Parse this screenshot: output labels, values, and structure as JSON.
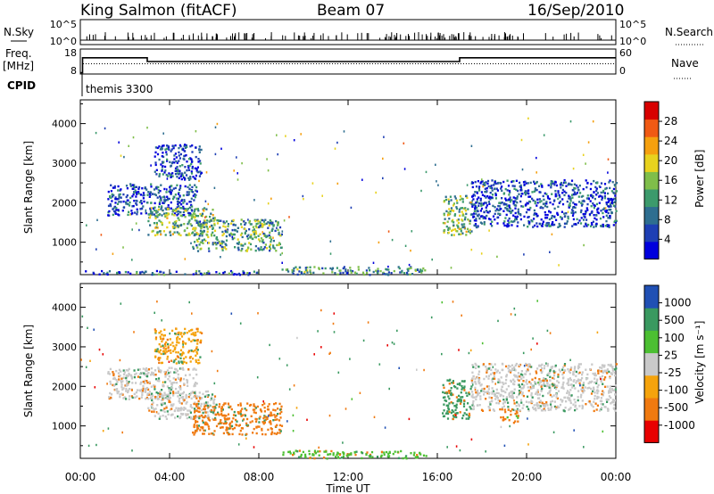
{
  "header": {
    "station": "King Salmon (fitACF)",
    "beam": "Beam 07",
    "date": "16/Sep/2010"
  },
  "strip": {
    "nsky_label": "N.Sky",
    "nsky_ticks": [
      "10^5",
      "10^0"
    ],
    "nsearch_label": "N.Search",
    "freq_label_1": "Freq.",
    "freq_label_2": "[MHz]",
    "freq_ticks": [
      "18",
      "8"
    ],
    "nave_label": "Nave",
    "nave_ticks": [
      "60",
      "0"
    ],
    "cpid_label": "CPID",
    "cpid_value": "themis 3300",
    "freq_trace": [
      {
        "t": 0.0,
        "f": 8.5
      },
      {
        "t": 0.1,
        "f": 8.5
      },
      {
        "t": 0.1,
        "f": 14.5
      },
      {
        "t": 3.0,
        "f": 14.5
      },
      {
        "t": 3.0,
        "f": 13.0
      },
      {
        "t": 17.0,
        "f": 13.0
      },
      {
        "t": 17.0,
        "f": 14.5
      },
      {
        "t": 24.0,
        "f": 14.5
      }
    ]
  },
  "chart_data": [
    {
      "type": "heatmap",
      "title": "Beam 07",
      "xlabel": "Time UT",
      "ylabel": "Slant Range [km]",
      "xlim": [
        0,
        24
      ],
      "ylim": [
        180,
        4600
      ],
      "x_ticks": [
        "00:00",
        "04:00",
        "08:00",
        "12:00",
        "16:00",
        "20:00",
        "00:00"
      ],
      "y_ticks": [
        "1000",
        "2000",
        "3000",
        "4000"
      ],
      "colorbar": {
        "label": "Power [dB]",
        "ticks": [
          "28",
          "24",
          "20",
          "16",
          "12",
          "8",
          "4"
        ],
        "range": [
          0,
          30
        ],
        "colors": [
          "#0000dd",
          "#1e3fb4",
          "#2e6e90",
          "#3c9a6c",
          "#7fbe4a",
          "#e8d21e",
          "#f5a00f",
          "#f05a14",
          "#d80000"
        ]
      },
      "regions": [
        {
          "t0": 1.2,
          "t1": 5.2,
          "r0": 1700,
          "r1": 2500,
          "level": 6
        },
        {
          "t0": 3.0,
          "t1": 6.0,
          "r0": 1200,
          "r1": 1900,
          "level": 14
        },
        {
          "t0": 5.0,
          "t1": 9.0,
          "r0": 800,
          "r1": 1600,
          "level": 12
        },
        {
          "t0": 3.3,
          "t1": 5.4,
          "r0": 2600,
          "r1": 3500,
          "level": 5
        },
        {
          "t0": 9.0,
          "t1": 15.5,
          "r0": 200,
          "r1": 400,
          "level": 10
        },
        {
          "t0": 16.2,
          "t1": 17.5,
          "r0": 1200,
          "r1": 2200,
          "level": 14
        },
        {
          "t0": 17.5,
          "t1": 24.0,
          "r0": 1400,
          "r1": 2600,
          "level": 5
        },
        {
          "t0": 0.0,
          "t1": 8.0,
          "r0": 200,
          "r1": 300,
          "level": 7
        }
      ]
    },
    {
      "type": "heatmap",
      "xlabel": "Time UT",
      "ylabel": "Slant Range [km]",
      "xlim": [
        0,
        24
      ],
      "ylim": [
        180,
        4600
      ],
      "x_ticks": [
        "00:00",
        "04:00",
        "08:00",
        "12:00",
        "16:00",
        "20:00",
        "00:00"
      ],
      "y_ticks": [
        "1000",
        "2000",
        "3000",
        "4000"
      ],
      "colorbar": {
        "label": "Velocity [m s⁻¹]",
        "ticks": [
          "1000",
          "500",
          "100",
          "25",
          "-25",
          "-100",
          "-500",
          "-1000"
        ],
        "range": [
          -1000,
          1000
        ],
        "colors": [
          "#e80000",
          "#f07a10",
          "#f5a30c",
          "#c9c9c9",
          "#4cbf32",
          "#3a9960",
          "#2050b4"
        ]
      },
      "regions": [
        {
          "t0": 1.2,
          "t1": 5.2,
          "r0": 1700,
          "r1": 2500,
          "level": 0
        },
        {
          "t0": 3.0,
          "t1": 6.0,
          "r0": 1200,
          "r1": 1900,
          "level": -20
        },
        {
          "t0": 5.0,
          "t1": 9.0,
          "r0": 800,
          "r1": 1600,
          "level": -150
        },
        {
          "t0": 3.3,
          "t1": 5.4,
          "r0": 2600,
          "r1": 3500,
          "level": -60
        },
        {
          "t0": 9.0,
          "t1": 15.5,
          "r0": 200,
          "r1": 400,
          "level": 80
        },
        {
          "t0": 16.2,
          "t1": 17.5,
          "r0": 1200,
          "r1": 2200,
          "level": 150
        },
        {
          "t0": 17.5,
          "t1": 24.0,
          "r0": 1400,
          "r1": 2600,
          "level": 0
        },
        {
          "t0": 18.8,
          "t1": 19.6,
          "r0": 1100,
          "r1": 1450,
          "level": -200
        }
      ]
    }
  ]
}
